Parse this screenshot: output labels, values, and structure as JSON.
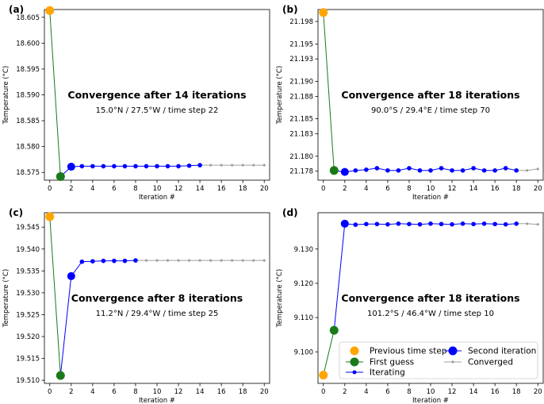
{
  "colors": {
    "previous": "#FFA500",
    "first_guess": "#1A7A1A",
    "iterating": "#0000FF",
    "converged": "#A0A0A0",
    "axis": "#000000"
  },
  "legend": {
    "previous": "Previous time step",
    "first_guess": "First guess",
    "iterating": "Iterating",
    "second": "Second iteration",
    "converged": "Converged"
  },
  "chart_data": [
    {
      "type": "line",
      "panel_label": "(a)",
      "title": "Convergence after 14 iterations",
      "subtitle": "15.0°N / 27.5°W / time step 22",
      "xlabel": "Iteration #",
      "ylabel": "Temperature (°C)",
      "xlim": [
        -0.5,
        20.5
      ],
      "ylim": [
        18.5735,
        18.6065
      ],
      "xticks": [
        0,
        2,
        4,
        6,
        8,
        10,
        12,
        14,
        16,
        18,
        20
      ],
      "yticks": [
        18.575,
        18.58,
        18.585,
        18.59,
        18.595,
        18.6,
        18.605
      ],
      "ytick_labels": [
        "18.575",
        "18.580",
        "18.585",
        "18.590",
        "18.595",
        "18.600",
        "18.605"
      ],
      "previous": [
        0,
        18.6063
      ],
      "first_guess": [
        1,
        18.5742
      ],
      "iterating": [
        [
          2,
          18.5761
        ],
        [
          3,
          18.5762
        ],
        [
          4,
          18.5762
        ],
        [
          5,
          18.5762
        ],
        [
          6,
          18.5762
        ],
        [
          7,
          18.5762
        ],
        [
          8,
          18.5762
        ],
        [
          9,
          18.5762
        ],
        [
          10,
          18.5762
        ],
        [
          11,
          18.5762
        ],
        [
          12,
          18.5762
        ],
        [
          13,
          18.5763
        ],
        [
          14,
          18.5764
        ]
      ],
      "converged": [
        [
          14,
          18.5764
        ],
        [
          15,
          18.5764
        ],
        [
          16,
          18.5764
        ],
        [
          17,
          18.5764
        ],
        [
          18,
          18.5764
        ],
        [
          19,
          18.5764
        ],
        [
          20,
          18.5764
        ]
      ]
    },
    {
      "type": "line",
      "panel_label": "(b)",
      "title": "Convergence after 18 iterations",
      "subtitle": "90.0°S / 29.4°E / time step 70",
      "xlabel": "Iteration #",
      "ylabel": "Temperature (°C)",
      "xlim": [
        -0.5,
        20.5
      ],
      "ylim": [
        21.1768,
        21.1996
      ],
      "xticks": [
        0,
        2,
        4,
        6,
        8,
        10,
        12,
        14,
        16,
        18,
        20
      ],
      "yticks": [
        21.178,
        21.18,
        21.183,
        21.185,
        21.188,
        21.19,
        21.193,
        21.195,
        21.198
      ],
      "ytick_labels": [
        "21.178",
        "21.180",
        "21.183",
        "21.185",
        "21.188",
        "21.190",
        "21.193",
        "21.195",
        "21.198"
      ],
      "previous": [
        0,
        21.1992
      ],
      "first_guess": [
        1,
        21.1781
      ],
      "iterating": [
        [
          2,
          21.1779
        ],
        [
          3,
          21.1781
        ],
        [
          4,
          21.1782
        ],
        [
          5,
          21.1784
        ],
        [
          6,
          21.1781
        ],
        [
          7,
          21.1781
        ],
        [
          8,
          21.1784
        ],
        [
          9,
          21.1781
        ],
        [
          10,
          21.1781
        ],
        [
          11,
          21.1784
        ],
        [
          12,
          21.1781
        ],
        [
          13,
          21.1781
        ],
        [
          14,
          21.1784
        ],
        [
          15,
          21.1781
        ],
        [
          16,
          21.1781
        ],
        [
          17,
          21.1784
        ],
        [
          18,
          21.1781
        ]
      ],
      "converged": [
        [
          18,
          21.1781
        ],
        [
          19,
          21.1781
        ],
        [
          20,
          21.1783
        ]
      ]
    },
    {
      "type": "line",
      "panel_label": "(c)",
      "title": "Convergence after 8 iterations",
      "subtitle": "11.2°N / 29.4°W / time step 25",
      "xlabel": "Iteration #",
      "ylabel": "Temperature (°C)",
      "xlim": [
        -0.5,
        20.5
      ],
      "ylim": [
        19.5093,
        19.5483
      ],
      "xticks": [
        0,
        2,
        4,
        6,
        8,
        10,
        12,
        14,
        16,
        18,
        20
      ],
      "yticks": [
        19.51,
        19.515,
        19.52,
        19.525,
        19.53,
        19.535,
        19.54,
        19.545
      ],
      "ytick_labels": [
        "19.510",
        "19.515",
        "19.520",
        "19.525",
        "19.530",
        "19.535",
        "19.540",
        "19.545"
      ],
      "previous": [
        0,
        19.5474
      ],
      "first_guess": [
        1,
        19.5111
      ],
      "iterating": [
        [
          2,
          19.5338
        ],
        [
          3,
          19.5371
        ],
        [
          4,
          19.5372
        ],
        [
          5,
          19.5373
        ],
        [
          6,
          19.5373
        ],
        [
          7,
          19.5373
        ],
        [
          8,
          19.5374
        ]
      ],
      "converged": [
        [
          8,
          19.5374
        ],
        [
          9,
          19.5374
        ],
        [
          10,
          19.5374
        ],
        [
          11,
          19.5374
        ],
        [
          12,
          19.5374
        ],
        [
          13,
          19.5374
        ],
        [
          14,
          19.5374
        ],
        [
          15,
          19.5374
        ],
        [
          16,
          19.5374
        ],
        [
          17,
          19.5374
        ],
        [
          18,
          19.5374
        ],
        [
          19,
          19.5374
        ],
        [
          20,
          19.5374
        ]
      ]
    },
    {
      "type": "line",
      "panel_label": "(d)",
      "title": "Convergence after 18 iterations",
      "subtitle": "101.2°S / 46.4°W / time step 10",
      "xlabel": "Iteration #",
      "ylabel": "Temperature (°C)",
      "xlim": [
        -0.5,
        20.5
      ],
      "ylim": [
        9.0908,
        9.1406
      ],
      "xticks": [
        0,
        2,
        4,
        6,
        8,
        10,
        12,
        14,
        16,
        18,
        20
      ],
      "yticks": [
        9.1,
        9.11,
        9.12,
        9.13
      ],
      "ytick_labels": [
        "9.100",
        "9.110",
        "9.120",
        "9.130"
      ],
      "previous": [
        0,
        9.0932
      ],
      "first_guess": [
        1,
        9.1063
      ],
      "iterating": [
        [
          2,
          9.1374
        ],
        [
          3,
          9.1371
        ],
        [
          4,
          9.1373
        ],
        [
          5,
          9.1373
        ],
        [
          6,
          9.1372
        ],
        [
          7,
          9.1374
        ],
        [
          8,
          9.1373
        ],
        [
          9,
          9.1372
        ],
        [
          10,
          9.1374
        ],
        [
          11,
          9.1373
        ],
        [
          12,
          9.1372
        ],
        [
          13,
          9.1374
        ],
        [
          14,
          9.1373
        ],
        [
          15,
          9.1374
        ],
        [
          16,
          9.1373
        ],
        [
          17,
          9.1372
        ],
        [
          18,
          9.1374
        ]
      ],
      "converged": [
        [
          18,
          9.1374
        ],
        [
          19,
          9.1374
        ],
        [
          20,
          9.1372
        ]
      ],
      "has_legend": true,
      "legend_position": "bottom-right"
    }
  ]
}
